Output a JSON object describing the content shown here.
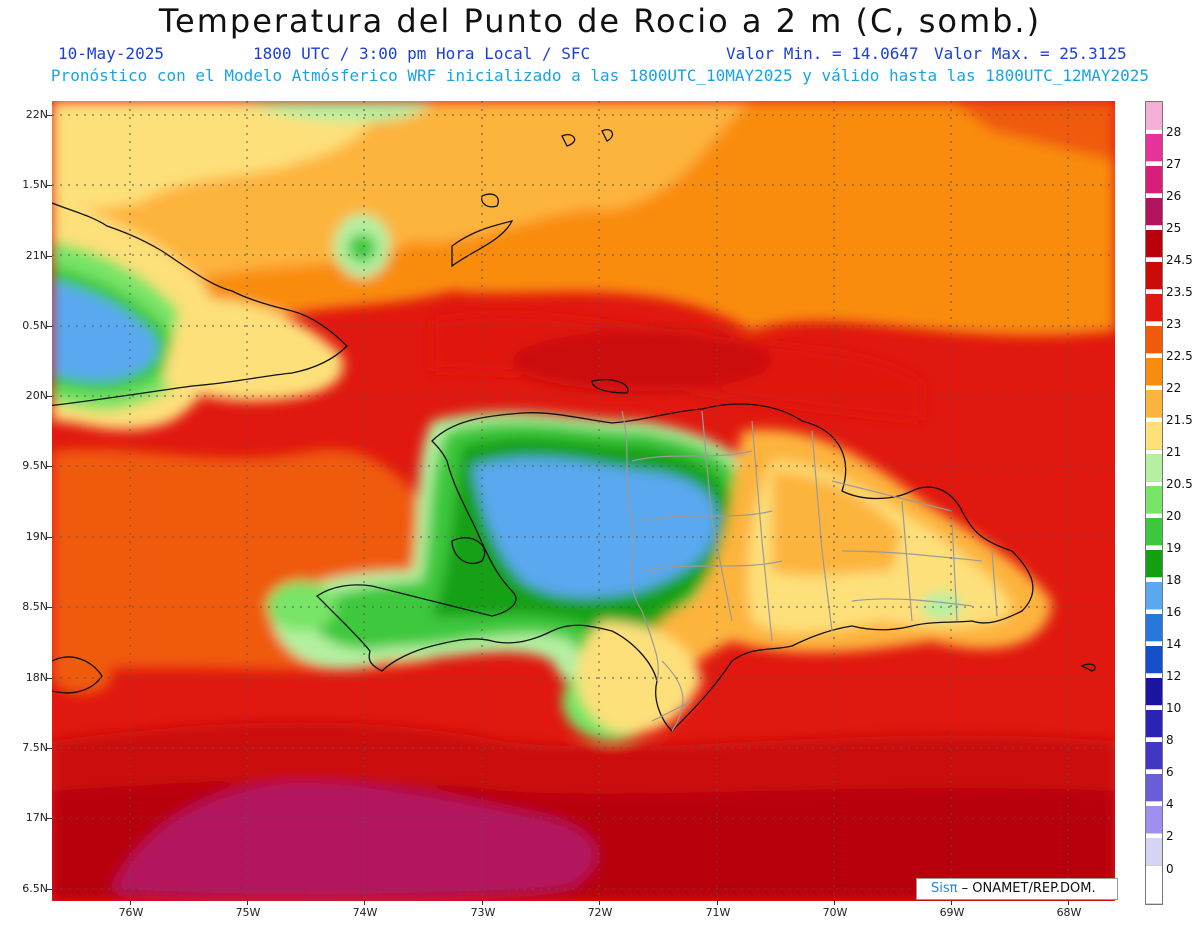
{
  "header": {
    "title": "Temperatura del Punto de Rocio a 2 m (C, somb.)",
    "date": "10-May-2025",
    "time": "1800 UTC / 3:00 pm Hora Local / SFC",
    "valor_min": "Valor Min. = 14.0647",
    "valor_max": "Valor Max. = 25.3125",
    "subtitle": "Pronóstico con el Modelo Atmósferico WRF inicializado a las 1800UTC_10MAY2025 y válido hasta las  1800UTC_12MAY2025"
  },
  "map": {
    "lat_labels": [
      "22N",
      "1.5N",
      "21N",
      "0.5N",
      "20N",
      "9.5N",
      "19N",
      "8.5N",
      "18N",
      "7.5N",
      "17N",
      "6.5N"
    ],
    "lon_labels": [
      "76W",
      "75W",
      "74W",
      "73W",
      "72W",
      "71W",
      "70W",
      "69W",
      "68W"
    ],
    "credit_brand": "Sisπ",
    "credit_text": "– ONAMET/REP.DOM."
  },
  "legend": {
    "labels": [
      "28",
      "27",
      "26",
      "25",
      "24.5",
      "23.5",
      "23",
      "22.5",
      "22",
      "21.5",
      "21",
      "20.5",
      "20",
      "19",
      "18",
      "16",
      "14",
      "12",
      "10",
      "8",
      "6",
      "4",
      "2",
      "0"
    ],
    "colors": [
      "#f4b0d4",
      "#e8329b",
      "#d81e78",
      "#b3125f",
      "#b8000a",
      "#cc0a08",
      "#e0180f",
      "#f05a0a",
      "#f98c0c",
      "#fdb43c",
      "#fde07a",
      "#b4f0a0",
      "#78e468",
      "#3cc83c",
      "#12a012",
      "#5aa8f0",
      "#2878dc",
      "#1450c8",
      "#1a14a0",
      "#2a24b4",
      "#4038c0",
      "#6a5ed8",
      "#a08ef0",
      "#d4d4f4",
      "#ffffff"
    ]
  }
}
